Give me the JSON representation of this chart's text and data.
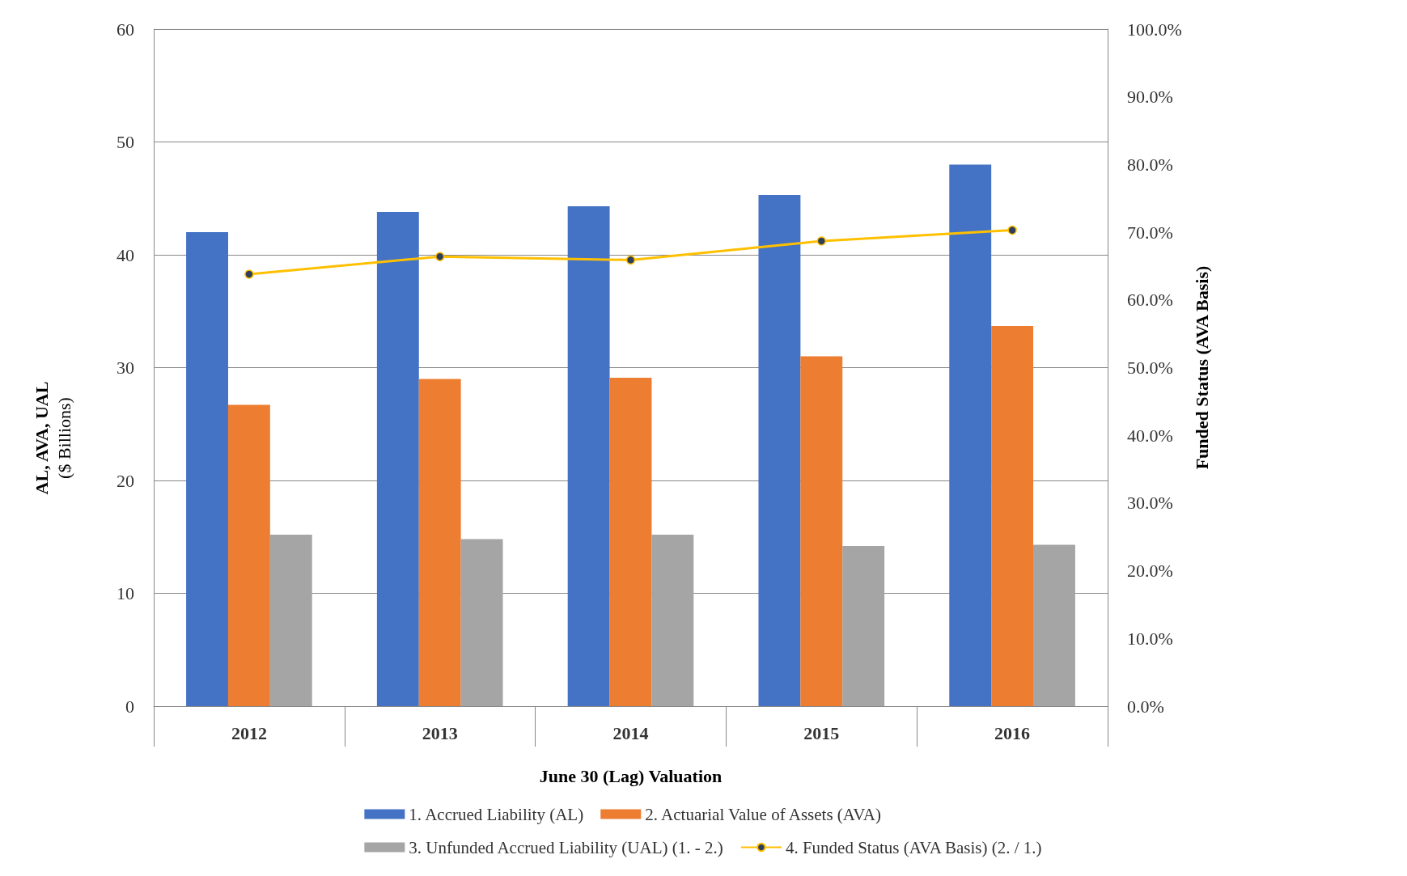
{
  "chart_data": {
    "type": "bar",
    "categories": [
      "2012",
      "2013",
      "2014",
      "2015",
      "2016"
    ],
    "xlabel": "June 30 (Lag) Valuation",
    "ylabel": "AL, AVA, UAL\n($ Billions)",
    "y2label": "Funded Status (AVA Basis)",
    "series": [
      {
        "name": "1. Accrued Liability (AL)",
        "color": "#4472c4",
        "values": [
          42.0,
          43.8,
          44.3,
          45.3,
          48.0
        ]
      },
      {
        "name": "2. Actuarial Value of Assets (AVA)",
        "color": "#ed7d31",
        "values": [
          26.7,
          29.0,
          29.1,
          31.0,
          33.7
        ]
      },
      {
        "name": "3. Unfunded Accrued Liability (UAL) (1. - 2.)",
        "color": "#a5a5a5",
        "values": [
          15.2,
          14.8,
          15.2,
          14.2,
          14.3
        ]
      },
      {
        "name": "4. Funded Status (AVA Basis) (2. / 1.)",
        "type": "line",
        "axis": "y2",
        "color": "#ffc000",
        "marker": "circle",
        "values": [
          63.8,
          66.4,
          65.9,
          68.7,
          70.3
        ]
      }
    ],
    "ylim": [
      0,
      60
    ],
    "yticks": [
      0,
      10,
      20,
      30,
      40,
      50,
      60
    ],
    "y2lim": [
      0,
      100
    ],
    "y2ticks": [
      {
        "value": 0,
        "label": "0.0%"
      },
      {
        "value": 10,
        "label": "10.0%"
      },
      {
        "value": 20,
        "label": "20.0%"
      },
      {
        "value": 30,
        "label": "30.0%"
      },
      {
        "value": 40,
        "label": "40.0%"
      },
      {
        "value": 50,
        "label": "50.0%"
      },
      {
        "value": 60,
        "label": "60.0%"
      },
      {
        "value": 70,
        "label": "70.0%"
      },
      {
        "value": 80,
        "label": "80.0%"
      },
      {
        "value": 90,
        "label": "90.0%"
      },
      {
        "value": 100,
        "label": "100.0%"
      }
    ],
    "grid": "y",
    "legend": "bottom"
  }
}
